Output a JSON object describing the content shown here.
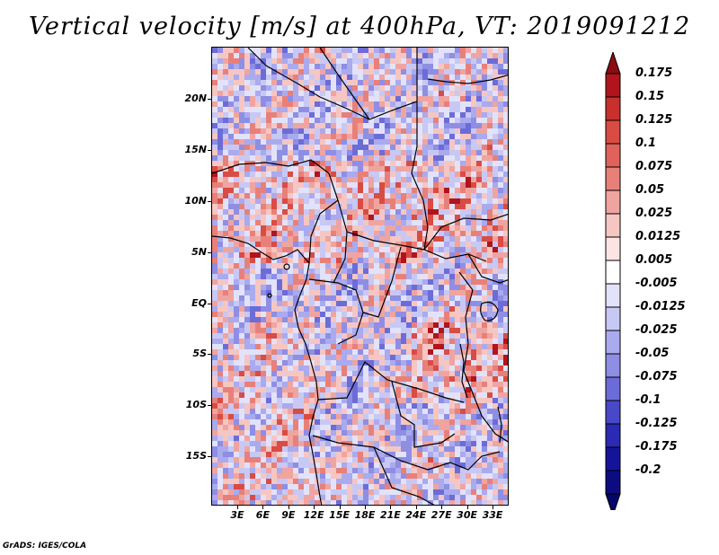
{
  "title": "Vertical velocity [m/s] at 400hPa, VT: 2019091212",
  "y_axis_labels": [
    "20N",
    "15N",
    "10N",
    "5N",
    "EQ",
    "5S",
    "10S",
    "15S"
  ],
  "x_axis_labels": [
    "3E",
    "6E",
    "9E",
    "12E",
    "15E",
    "18E",
    "21E",
    "24E",
    "27E",
    "30E",
    "33E"
  ],
  "colorbar": {
    "labels": [
      "0.175",
      "0.15",
      "0.125",
      "0.1",
      "0.075",
      "0.05",
      "0.025",
      "0.0125",
      "0.005",
      "-0.005",
      "-0.0125",
      "-0.025",
      "-0.05",
      "-0.075",
      "-0.1",
      "-0.125",
      "-0.175",
      "-0.2"
    ],
    "colors": [
      "#8c0c14",
      "#b0141c",
      "#c8302c",
      "#d94c44",
      "#e0625a",
      "#e8807a",
      "#f0a4a0",
      "#f6c6c2",
      "#fbe4e2",
      "#ffffff",
      "#e2e2fb",
      "#c8c8f4",
      "#aaaaee",
      "#8e8ee4",
      "#6c6cd8",
      "#4848c8",
      "#2a2ab4",
      "#14149a",
      "#0c0c80",
      "#06066a"
    ]
  },
  "map_colors": {
    "positive": [
      "#f6c6c2",
      "#f0a4a0",
      "#e8807a",
      "#d94c44",
      "#b0141c"
    ],
    "negative": [
      "#e2e2fb",
      "#c8c8f4",
      "#aaaaee",
      "#8e8ee4",
      "#6c6cd8"
    ]
  },
  "credit": "GrADS: IGES/COLA"
}
